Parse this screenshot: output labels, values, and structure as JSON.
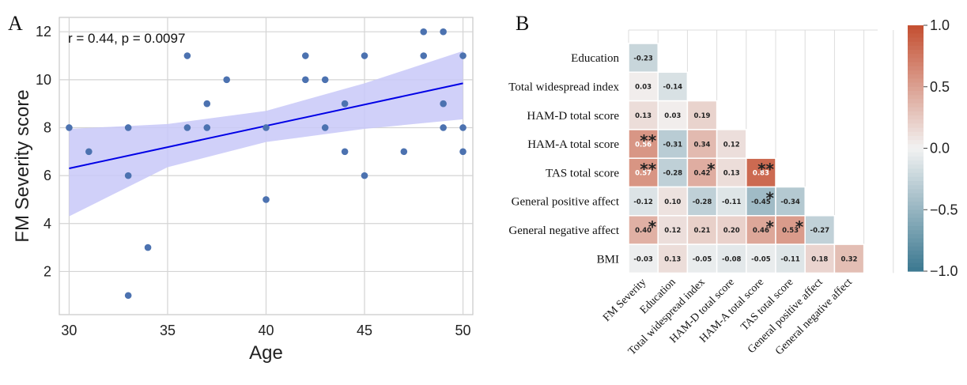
{
  "panels": {
    "a_letter": "A",
    "b_letter": "B"
  },
  "chart_data": [
    {
      "type": "scatter",
      "title": "",
      "xlabel": "Age",
      "ylabel": "FM Severity score",
      "xlim": [
        29.5,
        50.5
      ],
      "ylim": [
        0.2,
        12.6
      ],
      "x_ticks": [
        30,
        35,
        40,
        45,
        50
      ],
      "y_ticks": [
        2,
        4,
        6,
        8,
        10,
        12
      ],
      "grid": true,
      "annotation": "r = 0.44, p = 0.0097",
      "points": [
        {
          "x": 30,
          "y": 8
        },
        {
          "x": 31,
          "y": 7
        },
        {
          "x": 33,
          "y": 8
        },
        {
          "x": 33,
          "y": 6
        },
        {
          "x": 33,
          "y": 1
        },
        {
          "x": 34,
          "y": 3
        },
        {
          "x": 36,
          "y": 11
        },
        {
          "x": 36,
          "y": 8
        },
        {
          "x": 37,
          "y": 9
        },
        {
          "x": 37,
          "y": 8
        },
        {
          "x": 38,
          "y": 10
        },
        {
          "x": 40,
          "y": 8
        },
        {
          "x": 40,
          "y": 5
        },
        {
          "x": 42,
          "y": 11
        },
        {
          "x": 42,
          "y": 10
        },
        {
          "x": 43,
          "y": 10
        },
        {
          "x": 43,
          "y": 8
        },
        {
          "x": 44,
          "y": 9
        },
        {
          "x": 44,
          "y": 7
        },
        {
          "x": 45,
          "y": 11
        },
        {
          "x": 45,
          "y": 6
        },
        {
          "x": 47,
          "y": 7
        },
        {
          "x": 48,
          "y": 12
        },
        {
          "x": 48,
          "y": 11
        },
        {
          "x": 49,
          "y": 12
        },
        {
          "x": 49,
          "y": 9
        },
        {
          "x": 49,
          "y": 8
        },
        {
          "x": 50,
          "y": 11
        },
        {
          "x": 50,
          "y": 8
        },
        {
          "x": 50,
          "y": 7
        }
      ],
      "regression": {
        "x": [
          30,
          50
        ],
        "y": [
          6.3,
          9.85
        ]
      },
      "confidence_band": {
        "x": [
          30,
          35,
          40,
          45,
          50
        ],
        "upper": [
          7.95,
          8.15,
          8.7,
          9.85,
          11.2
        ],
        "lower": [
          4.3,
          6.35,
          7.4,
          7.95,
          8.35
        ]
      },
      "colors": {
        "points": "#4c72b0",
        "line": "#0000e6",
        "band": "#c8c8f8"
      }
    },
    {
      "type": "heatmap",
      "rows": [
        "Education",
        "Total widespread index",
        "HAM-D total score",
        "HAM-A total score",
        "TAS total score",
        "General positive affect",
        "General negative affect",
        "BMI"
      ],
      "columns": [
        "FM Severity",
        "Education",
        "Total widespread index",
        "HAM-D total score",
        "HAM-A total score",
        "TAS total score",
        "General positive affect",
        "General negative affect"
      ],
      "values": [
        [
          -0.23
        ],
        [
          0.03,
          -0.14
        ],
        [
          0.13,
          0.03,
          0.19
        ],
        [
          0.56,
          -0.31,
          0.34,
          0.12
        ],
        [
          0.57,
          -0.28,
          0.42,
          0.13,
          0.83
        ],
        [
          -0.12,
          0.1,
          -0.28,
          -0.11,
          -0.45,
          -0.34
        ],
        [
          0.4,
          0.12,
          0.21,
          0.2,
          0.46,
          0.53,
          -0.27
        ],
        [
          -0.03,
          0.13,
          -0.05,
          -0.08,
          -0.05,
          -0.11,
          0.18,
          0.32
        ]
      ],
      "labels": [
        [
          "-0.23"
        ],
        [
          "0.03",
          "-0.14"
        ],
        [
          "0.13",
          "0.03",
          "0.19"
        ],
        [
          "0.56",
          "-0.31",
          "0.34",
          "0.12"
        ],
        [
          "0.57",
          "-0.28",
          "0.42",
          "0.13",
          "0.83"
        ],
        [
          "-0.12",
          "0.10",
          "-0.28",
          "-0.11",
          "-0.45",
          "-0.34"
        ],
        [
          "0.40",
          "0.12",
          "0.21",
          "0.20",
          "0.46",
          "0.53",
          "-0.27"
        ],
        [
          "-0.03",
          "0.13",
          "-0.05",
          "-0.08",
          "-0.05",
          "-0.11",
          "0.18",
          "0.32"
        ]
      ],
      "significance": [
        {
          "row": 3,
          "col": 0,
          "mark": "**"
        },
        {
          "row": 4,
          "col": 0,
          "mark": "**"
        },
        {
          "row": 4,
          "col": 2,
          "mark": "*"
        },
        {
          "row": 4,
          "col": 4,
          "mark": "**"
        },
        {
          "row": 5,
          "col": 4,
          "mark": "*"
        },
        {
          "row": 6,
          "col": 0,
          "mark": "*"
        },
        {
          "row": 6,
          "col": 4,
          "mark": "*"
        },
        {
          "row": 6,
          "col": 5,
          "mark": "*"
        }
      ],
      "vmin": -1.0,
      "vmax": 1.0,
      "colorbar_ticks": [
        "1.0",
        "0.5",
        "0.0",
        "−0.5",
        "−1.0"
      ],
      "colorbar_tick_values": [
        1.0,
        0.5,
        0.0,
        -0.5,
        -1.0
      ],
      "colors": {
        "negative": "#3b7890",
        "neutral": "#f2f2f2",
        "positive": "#c44e30"
      }
    }
  ]
}
